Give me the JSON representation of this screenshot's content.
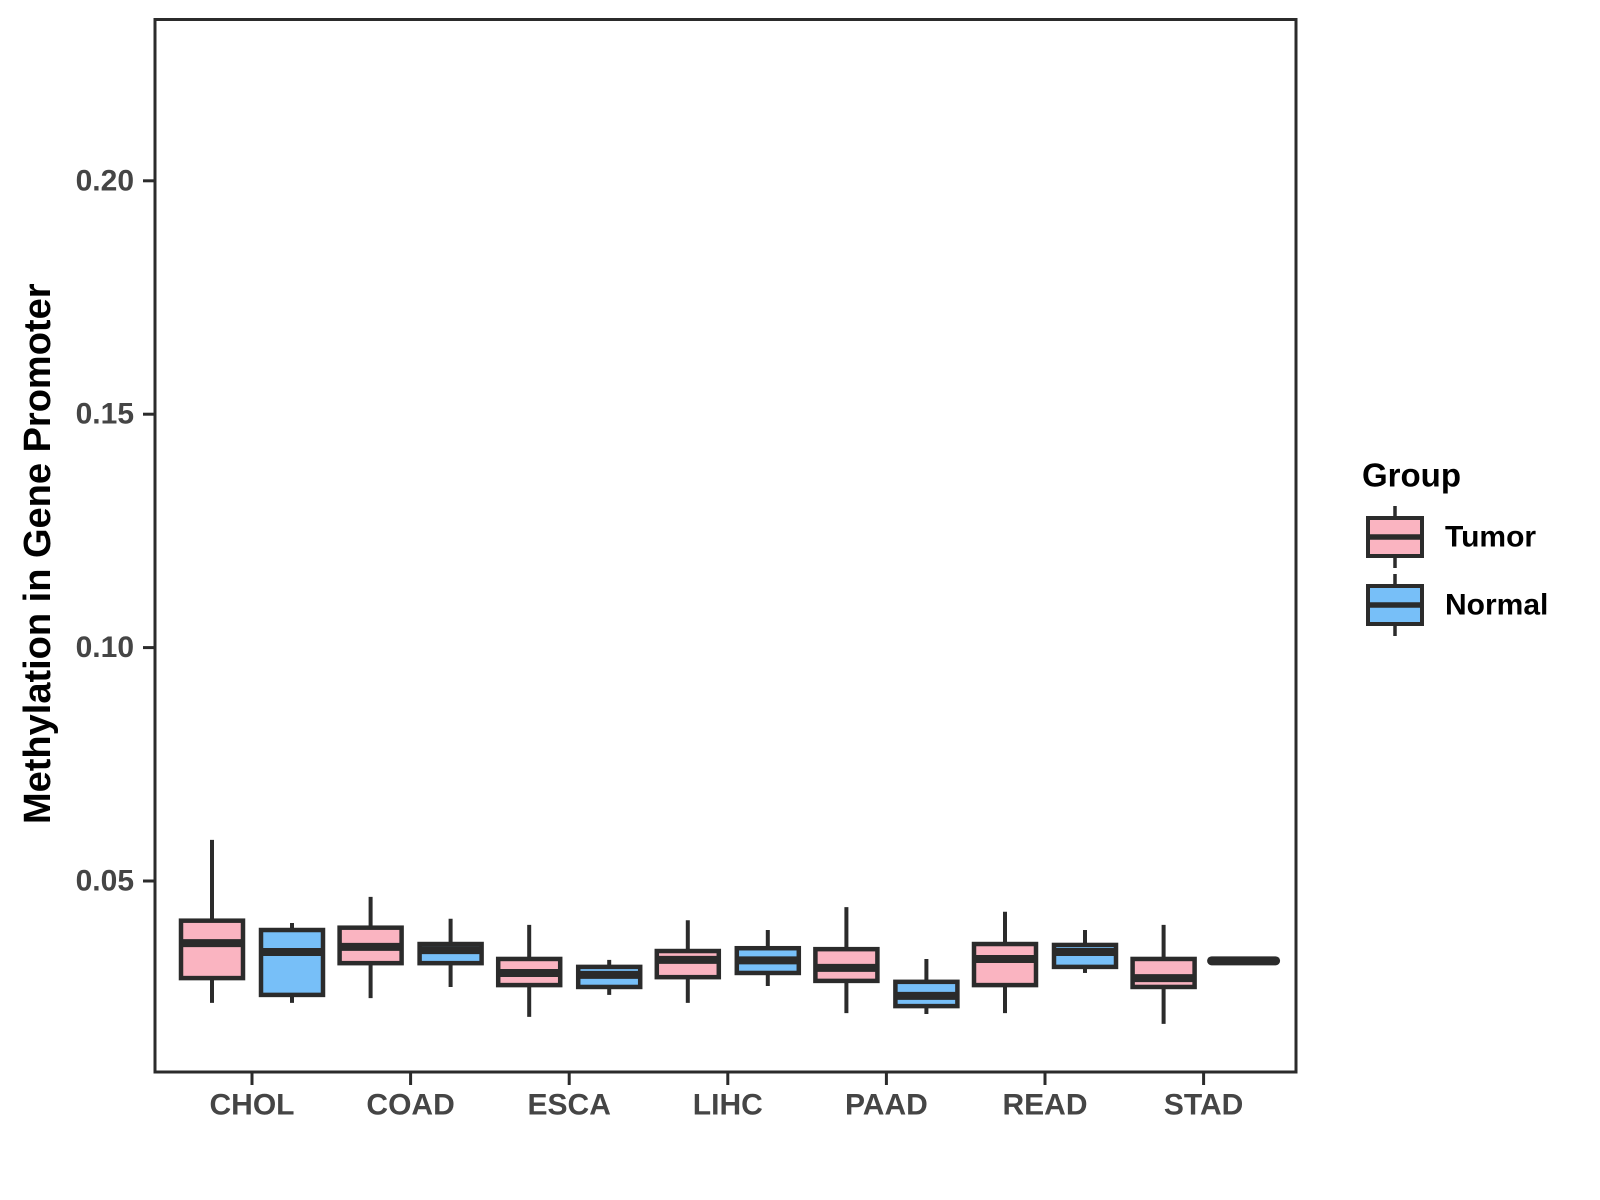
{
  "chart_data": {
    "type": "grouped_boxplot",
    "title": "",
    "xlabel": "",
    "ylabel": "Methylation in Gene Promoter",
    "categories": [
      "CHOL",
      "COAD",
      "ESCA",
      "LIHC",
      "PAAD",
      "READ",
      "STAD"
    ],
    "groups": [
      {
        "name": "Tumor",
        "fill": "#FAB4C1"
      },
      {
        "name": "Normal",
        "fill": "#77BFF8"
      }
    ],
    "legend": {
      "title": "Group",
      "position": "right",
      "entries": [
        "Tumor",
        "Normal"
      ]
    },
    "ylim": [
      0.009,
      0.235
    ],
    "yticks": [
      0.05,
      0.1,
      0.15,
      0.2
    ],
    "ytick_labels": [
      "0.05",
      "0.10",
      "0.15",
      "0.20"
    ],
    "grid": false,
    "boxes": [
      {
        "category": "CHOL",
        "group": "Tumor",
        "whisker_low": 0.0239,
        "q1": 0.0292,
        "median": 0.0367,
        "q3": 0.0415,
        "whisker_high": 0.0588
      },
      {
        "category": "CHOL",
        "group": "Normal",
        "whisker_low": 0.0239,
        "q1": 0.0256,
        "median": 0.0348,
        "q3": 0.0395,
        "whisker_high": 0.041
      },
      {
        "category": "COAD",
        "group": "Tumor",
        "whisker_low": 0.0249,
        "q1": 0.0324,
        "median": 0.0359,
        "q3": 0.04,
        "whisker_high": 0.0466
      },
      {
        "category": "COAD",
        "group": "Normal",
        "whisker_low": 0.0273,
        "q1": 0.0324,
        "median": 0.0352,
        "q3": 0.0365,
        "whisker_high": 0.0419
      },
      {
        "category": "ESCA",
        "group": "Tumor",
        "whisker_low": 0.0209,
        "q1": 0.0277,
        "median": 0.0303,
        "q3": 0.0333,
        "whisker_high": 0.0406
      },
      {
        "category": "ESCA",
        "group": "Normal",
        "whisker_low": 0.0256,
        "q1": 0.0273,
        "median": 0.0299,
        "q3": 0.0316,
        "whisker_high": 0.0331
      },
      {
        "category": "LIHC",
        "group": "Tumor",
        "whisker_low": 0.0239,
        "q1": 0.0294,
        "median": 0.0331,
        "q3": 0.035,
        "whisker_high": 0.0416
      },
      {
        "category": "LIHC",
        "group": "Normal",
        "whisker_low": 0.0275,
        "q1": 0.0303,
        "median": 0.033,
        "q3": 0.0356,
        "whisker_high": 0.0395
      },
      {
        "category": "PAAD",
        "group": "Tumor",
        "whisker_low": 0.0217,
        "q1": 0.0286,
        "median": 0.0314,
        "q3": 0.0354,
        "whisker_high": 0.0444
      },
      {
        "category": "PAAD",
        "group": "Normal",
        "whisker_low": 0.0215,
        "q1": 0.0232,
        "median": 0.0254,
        "q3": 0.0284,
        "whisker_high": 0.0333
      },
      {
        "category": "READ",
        "group": "Tumor",
        "whisker_low": 0.0217,
        "q1": 0.0277,
        "median": 0.0333,
        "q3": 0.0365,
        "whisker_high": 0.0434
      },
      {
        "category": "READ",
        "group": "Normal",
        "whisker_low": 0.0303,
        "q1": 0.0316,
        "median": 0.0348,
        "q3": 0.0363,
        "whisker_high": 0.0395
      },
      {
        "category": "STAD",
        "group": "Tumor",
        "whisker_low": 0.0194,
        "q1": 0.0273,
        "median": 0.0292,
        "q3": 0.0333,
        "whisker_high": 0.0406
      },
      {
        "category": "STAD",
        "group": "Normal",
        "flat_line": true,
        "median": 0.0329
      }
    ],
    "colors": {
      "box_stroke": "#2b2b2b",
      "panel_border": "#2b2b2b",
      "axis_text": "#454545",
      "axis_title": "#000000",
      "legend_text": "#000000",
      "background": "#ffffff"
    }
  }
}
